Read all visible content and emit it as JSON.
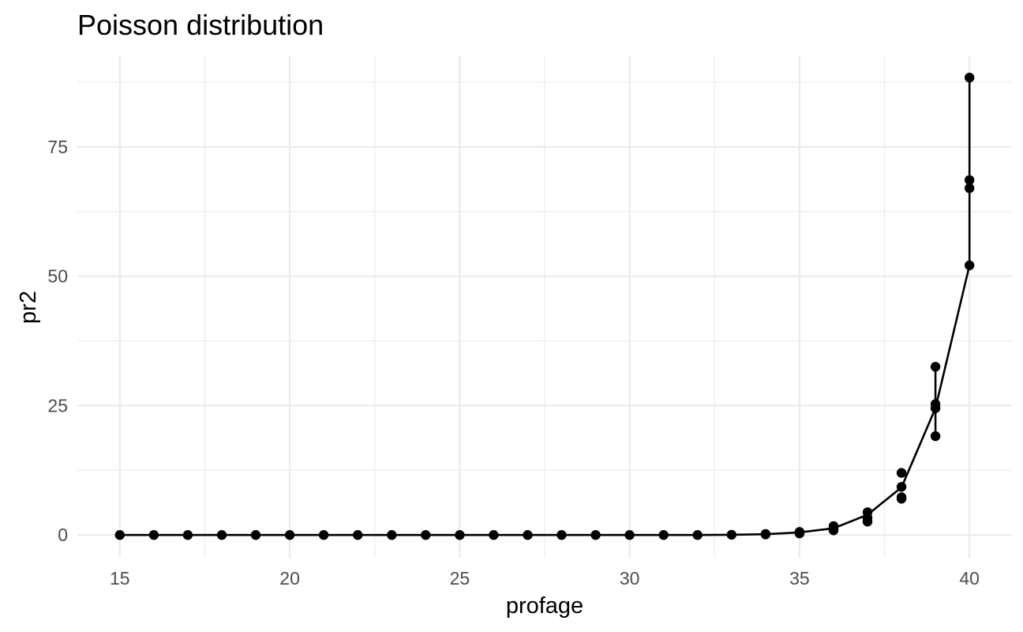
{
  "chart_data": {
    "type": "scatter",
    "title": "Poisson distribution",
    "xlabel": "profage",
    "ylabel": "pr2",
    "xlim": [
      13.75,
      41.25
    ],
    "ylim": [
      -4.4,
      92.7
    ],
    "x_ticks": [
      15,
      20,
      25,
      30,
      35,
      40
    ],
    "x_tick_labels": [
      "15",
      "20",
      "25",
      "30",
      "35",
      "40"
    ],
    "y_ticks": [
      0,
      25,
      50,
      75
    ],
    "y_tick_labels": [
      "0",
      "25",
      "50",
      "75"
    ],
    "grid": true,
    "legend": "none",
    "line_color": "#000000",
    "point_color": "#000000",
    "series": [
      {
        "points": [
          [
            15,
            0
          ],
          [
            16,
            0
          ],
          [
            17,
            0
          ],
          [
            18,
            0
          ],
          [
            19,
            0
          ],
          [
            20,
            0
          ],
          [
            21,
            0
          ],
          [
            22,
            0
          ],
          [
            23,
            0
          ],
          [
            24,
            0
          ],
          [
            25,
            0
          ],
          [
            26,
            0
          ],
          [
            27,
            0
          ],
          [
            28,
            0
          ],
          [
            29,
            0
          ],
          [
            30,
            0
          ],
          [
            31,
            0
          ],
          [
            32,
            0
          ],
          [
            33,
            0.05
          ],
          [
            34,
            0.1
          ],
          [
            34,
            0.2
          ],
          [
            35,
            0.3
          ],
          [
            35,
            0.6
          ],
          [
            36,
            0.9
          ],
          [
            36,
            1.3
          ],
          [
            36,
            1.7
          ],
          [
            37,
            2.6
          ],
          [
            37,
            3.3
          ],
          [
            37,
            4.4
          ],
          [
            38,
            7.0
          ],
          [
            38,
            7.3
          ],
          [
            38,
            9.3
          ],
          [
            38,
            12.0
          ],
          [
            39,
            19.1
          ],
          [
            39,
            24.5
          ],
          [
            39,
            25.3
          ],
          [
            39,
            32.5
          ],
          [
            40,
            52.1
          ],
          [
            40,
            67.0
          ],
          [
            40,
            68.6
          ],
          [
            40,
            88.4
          ]
        ],
        "line": [
          [
            15,
            0
          ],
          [
            16,
            0
          ],
          [
            17,
            0
          ],
          [
            18,
            0
          ],
          [
            19,
            0
          ],
          [
            20,
            0
          ],
          [
            21,
            0
          ],
          [
            22,
            0
          ],
          [
            23,
            0
          ],
          [
            24,
            0
          ],
          [
            25,
            0
          ],
          [
            26,
            0
          ],
          [
            27,
            0
          ],
          [
            28,
            0
          ],
          [
            29,
            0
          ],
          [
            30,
            0
          ],
          [
            31,
            0
          ],
          [
            32,
            0
          ],
          [
            33,
            0.05
          ],
          [
            34,
            0.15
          ],
          [
            35,
            0.5
          ],
          [
            36,
            1.3
          ],
          [
            37,
            3.9
          ],
          [
            38,
            9.2
          ],
          [
            39,
            24.5
          ],
          [
            39,
            32.5
          ],
          [
            39,
            19.1
          ],
          [
            39,
            24.5
          ],
          [
            40,
            52.1
          ],
          [
            40,
            88.4
          ]
        ]
      }
    ]
  }
}
